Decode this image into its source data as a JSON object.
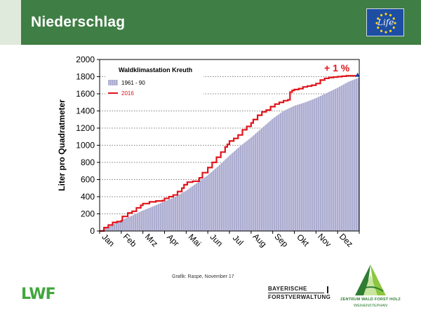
{
  "header": {
    "title": "Niederschlag"
  },
  "eu_logo": {
    "text": "Life",
    "icon": "eu-flag-stars"
  },
  "credit": "Grafik: Raspe, November 17",
  "logos": {
    "lwf": "LWF",
    "bayerische_line1": "BAYERISCHE",
    "bayerische_line2": "FORSTVERWALTUNG",
    "zentrum_name": "ZENTRUM WALD FORST HOLZ",
    "zentrum_place": "WEIHENSTEPHAN"
  },
  "colors": {
    "header_green": "#3f7e44",
    "series_1961_90": "#aeaed0",
    "series_2016": "#e1141b",
    "annotation": "#e1141b"
  },
  "chart_data": {
    "type": "area",
    "title": "Waldklimastation Kreuth",
    "xlabel": "",
    "ylabel": "Liter pro Quadratmeter",
    "ylim": [
      0,
      2000
    ],
    "yticks": [
      0,
      200,
      400,
      600,
      800,
      1000,
      1200,
      1400,
      1600,
      1800,
      2000
    ],
    "xlim": [
      0,
      12
    ],
    "categories": [
      "Jan",
      "Feb",
      "Mrz",
      "Apr",
      "Mai",
      "Jun",
      "Jul",
      "Aug",
      "Sep",
      "Okt",
      "Nov",
      "Dez"
    ],
    "grid": "dotted horizontal",
    "legend_position": "top-left",
    "annotation": "+ 1 %",
    "series": [
      {
        "name": "1961 - 90",
        "type": "area",
        "x": [
          0,
          0.5,
          1,
          1.5,
          2,
          2.5,
          3,
          3.5,
          4,
          4.5,
          5,
          5.5,
          6,
          6.5,
          7,
          7.5,
          8,
          8.5,
          9,
          9.5,
          10,
          10.5,
          11,
          11.5,
          12
        ],
        "y": [
          0,
          60,
          125,
          180,
          240,
          290,
          345,
          400,
          470,
          560,
          650,
          760,
          880,
          990,
          1090,
          1200,
          1310,
          1400,
          1460,
          1500,
          1550,
          1610,
          1670,
          1740,
          1790
        ]
      },
      {
        "name": "2016",
        "type": "line",
        "x": [
          0,
          0.2,
          0.4,
          0.6,
          0.8,
          1.0,
          1.05,
          1.3,
          1.5,
          1.7,
          1.9,
          2.0,
          2.3,
          2.6,
          2.9,
          3.0,
          3.2,
          3.4,
          3.6,
          3.8,
          3.9,
          4.05,
          4.3,
          4.6,
          4.75,
          5.0,
          5.2,
          5.4,
          5.6,
          5.8,
          5.9,
          6.0,
          6.2,
          6.4,
          6.6,
          6.8,
          7.0,
          7.1,
          7.3,
          7.5,
          7.7,
          7.9,
          8.1,
          8.3,
          8.5,
          8.7,
          8.8,
          8.9,
          9.0,
          9.2,
          9.4,
          9.6,
          9.8,
          10.0,
          10.2,
          10.4,
          10.6,
          10.8,
          11.0,
          11.2,
          11.4,
          11.6,
          11.8,
          12.0
        ],
        "y": [
          0,
          40,
          70,
          100,
          110,
          120,
          170,
          210,
          230,
          270,
          300,
          320,
          340,
          350,
          355,
          380,
          400,
          420,
          460,
          500,
          540,
          570,
          580,
          620,
          680,
          740,
          800,
          860,
          920,
          980,
          1010,
          1050,
          1080,
          1120,
          1180,
          1220,
          1260,
          1300,
          1350,
          1390,
          1410,
          1450,
          1480,
          1500,
          1520,
          1530,
          1620,
          1640,
          1650,
          1660,
          1680,
          1690,
          1700,
          1720,
          1760,
          1780,
          1790,
          1795,
          1800,
          1805,
          1810,
          1810,
          1810,
          1810
        ]
      }
    ]
  }
}
